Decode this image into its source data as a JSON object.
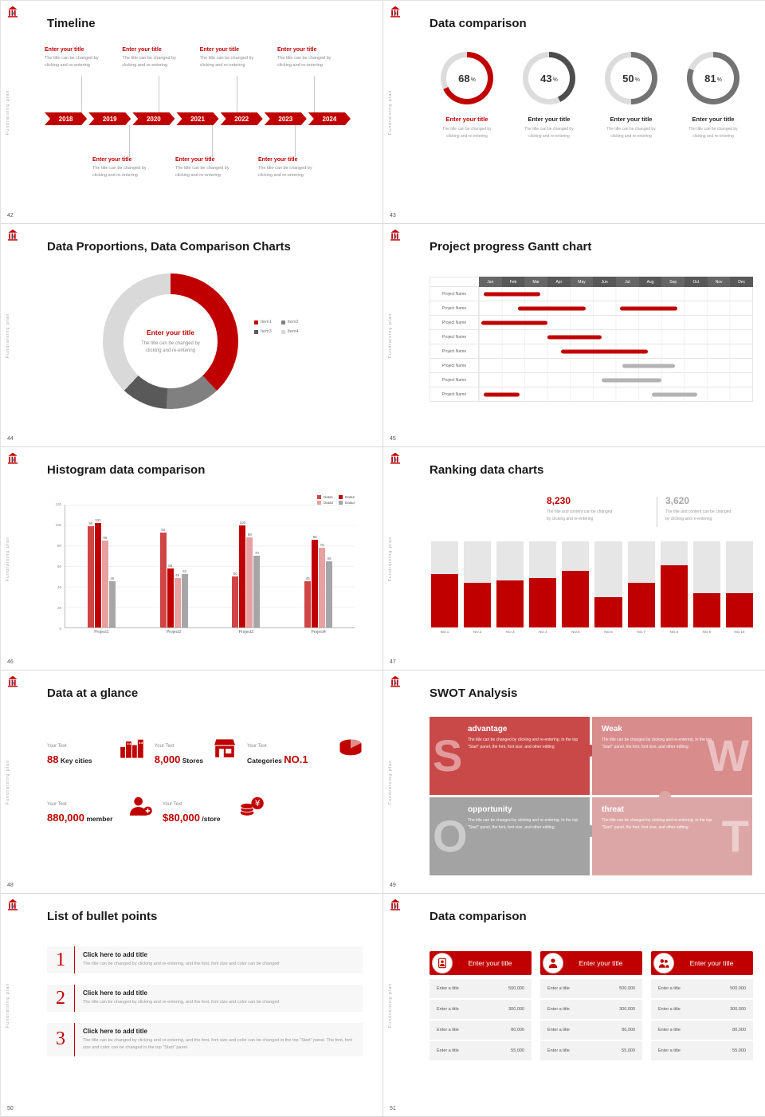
{
  "common": {
    "sidebar_text": "Fundraising plan",
    "accent": "#c00000"
  },
  "s42": {
    "number": "42",
    "title": "Timeline",
    "years": [
      "2018",
      "2019",
      "2020",
      "2021",
      "2022",
      "2023",
      "2024"
    ],
    "entry": {
      "title": "Enter your title",
      "desc1": "The title can be changed by",
      "desc2": "clicking and re-entering"
    }
  },
  "s43": {
    "number": "43",
    "title": "Data comparison",
    "entry": {
      "title": "Enter your title",
      "desc1": "The title can be changed by",
      "desc2": "clicking and re-entering"
    },
    "chart_data": {
      "type": "donut-rings",
      "values": [
        68,
        43,
        50,
        81
      ],
      "unit": "%",
      "colors": [
        "#c00000",
        "#4d4d4d",
        "#737373",
        "#737373"
      ],
      "title_colors": [
        "#c00000",
        "#262626",
        "#262626",
        "#262626"
      ]
    }
  },
  "s44": {
    "number": "44",
    "title": "Data Proportions, Data Comparison Charts",
    "center": {
      "title": "Enter your title",
      "desc1": "The title can be changed by",
      "desc2": "clicking and re-entering"
    },
    "chart_data": {
      "type": "pie",
      "legend": [
        "Item1",
        "Item2",
        "Item3",
        "Item4"
      ],
      "values": [
        38,
        13,
        11,
        38
      ],
      "colors": [
        "#c00000",
        "#808080",
        "#595959",
        "#d9d9d9"
      ]
    }
  },
  "s45": {
    "number": "45",
    "title": "Project progress Gantt chart",
    "chart_data": {
      "type": "gantt",
      "months": [
        "Jan",
        "Feb",
        "Mar",
        "Apr",
        "May",
        "Jun",
        "Jul",
        "Aug",
        "Sep",
        "Oct",
        "Nov",
        "Dec"
      ],
      "rows": [
        {
          "label": "Project Name",
          "bars": [
            {
              "start": 0.2,
              "end": 2.7,
              "color": "#c00000"
            }
          ]
        },
        {
          "label": "Project Name",
          "bars": [
            {
              "start": 1.7,
              "end": 4.7,
              "color": "#c00000"
            },
            {
              "start": 6.2,
              "end": 8.7,
              "color": "#c00000"
            }
          ]
        },
        {
          "label": "Project Name",
          "bars": [
            {
              "start": 0.1,
              "end": 3.0,
              "color": "#c00000"
            }
          ]
        },
        {
          "label": "Project Name",
          "bars": [
            {
              "start": 3.0,
              "end": 5.4,
              "color": "#c00000"
            }
          ]
        },
        {
          "label": "Project Name",
          "bars": [
            {
              "start": 3.6,
              "end": 7.4,
              "color": "#c00000"
            }
          ]
        },
        {
          "label": "Project Name",
          "bars": [
            {
              "start": 6.3,
              "end": 8.6,
              "color": "#b3b3b3"
            }
          ]
        },
        {
          "label": "Project Name",
          "bars": [
            {
              "start": 5.4,
              "end": 8.0,
              "color": "#b3b3b3"
            }
          ]
        },
        {
          "label": "Project Name",
          "bars": [
            {
              "start": 0.2,
              "end": 1.8,
              "color": "#c00000"
            },
            {
              "start": 7.6,
              "end": 9.6,
              "color": "#b3b3b3"
            }
          ]
        }
      ]
    }
  },
  "s46": {
    "number": "46",
    "title": "Histogram data comparison",
    "chart_data": {
      "type": "bar",
      "categories": [
        "Project1",
        "Project2",
        "Project3",
        "Project4"
      ],
      "series": [
        {
          "name": "Data1",
          "color": "#d04545",
          "values": [
            99,
            93,
            50,
            45
          ]
        },
        {
          "name": "Data2",
          "color": "#c00000",
          "values": [
            102,
            58,
            100,
            86
          ]
        },
        {
          "name": "Data3",
          "color": "#e8a0a0",
          "values": [
            85,
            48,
            88,
            78
          ]
        },
        {
          "name": "Data4",
          "color": "#a6a6a6",
          "values": [
            45,
            52,
            70,
            65
          ]
        }
      ],
      "ymax": 120,
      "yticks": [
        0,
        20,
        40,
        60,
        80,
        100,
        120
      ]
    }
  },
  "s47": {
    "number": "47",
    "title": "Ranking data charts",
    "stats": [
      {
        "value": "8,230",
        "desc1": "The title and content can be changed",
        "desc2": "by clicking and re-entering",
        "color": "#c00000"
      },
      {
        "value": "3,620",
        "desc1": "The title and content can be changed",
        "desc2": "by clicking and re-entering",
        "color": "#a6a6a6"
      }
    ],
    "chart_data": {
      "type": "bar",
      "categories": [
        "NO.1",
        "NO.2",
        "NO.3",
        "NO.4",
        "NO.5",
        "NO.6",
        "NO.7",
        "NO.8",
        "NO.9",
        "NO.10"
      ],
      "values": [
        62,
        52,
        55,
        57,
        66,
        35,
        52,
        72,
        40,
        40
      ],
      "ymax": 100
    }
  },
  "s48": {
    "number": "48",
    "title": "Data at a glance",
    "items": [
      {
        "label": "Your Text",
        "pre": "",
        "big": "88",
        "post": " Key cities"
      },
      {
        "label": "Your Text",
        "pre": "",
        "big": "8,000",
        "post": " Stores"
      },
      {
        "label": "Your Text",
        "pre": "Categories ",
        "big": "NO.1",
        "post": ""
      },
      {
        "label": "Your Text",
        "pre": "",
        "big": "880,000",
        "post": " member"
      },
      {
        "label": "Your Text",
        "pre": "",
        "big": "$80,000",
        "post": " /store"
      }
    ]
  },
  "s49": {
    "number": "49",
    "title": "SWOT Analysis",
    "quadrants": [
      {
        "letter": "S",
        "label": "advantage",
        "desc": "The title can be changed by clicking and re-entering. In the top \"Start\" panel, the font, font size, and other editing",
        "color": "#c94949"
      },
      {
        "letter": "W",
        "label": "Weak",
        "desc": "The title can be changed by clicking and re-entering. In the top \"Start\" panel, the font, font size, and other editing",
        "color": "#d98c8c"
      },
      {
        "letter": "O",
        "label": "opportunity",
        "desc": "The title can be changed by clicking and re-entering. In the top \"Start\" panel, the font, font size, and other editing",
        "color": "#a3a3a3"
      },
      {
        "letter": "T",
        "label": "threat",
        "desc": "The title can be changed by clicking and re-entering. In the top \"Start\" panel, the font, font size, and other editing",
        "color": "#dda6a6"
      }
    ]
  },
  "s50": {
    "number": "50",
    "title": "List of bullet points",
    "items": [
      {
        "num": "1",
        "title": "Click here to add title",
        "desc": "The title can be changed by clicking and re-entering, and the font, font size and color can be changed"
      },
      {
        "num": "2",
        "title": "Click here to add title",
        "desc": "The title can be changed by clicking and re-entering, and the font, font size and color can be changed"
      },
      {
        "num": "3",
        "title": "Click here to add title",
        "desc": "The title can be changed by clicking and re-entering, and the font, font size and color can be changed in the top \"Start\" panel. The font, font size and color can be changed in the top \"Start\" panel."
      }
    ]
  },
  "s51": {
    "number": "51",
    "title": "Data comparison",
    "cards": [
      {
        "header": "Enter your title",
        "rows": [
          [
            "Enter a title",
            "500,000"
          ],
          [
            "Enter a title",
            "300,000"
          ],
          [
            "Enter a title",
            "80,000"
          ],
          [
            "Enter a title",
            "55,000"
          ]
        ]
      },
      {
        "header": "Enter your title",
        "rows": [
          [
            "Enter a title",
            "500,000"
          ],
          [
            "Enter a title",
            "300,000"
          ],
          [
            "Enter a title",
            "80,000"
          ],
          [
            "Enter a title",
            "55,000"
          ]
        ]
      },
      {
        "header": "Enter your title",
        "rows": [
          [
            "Enter a title",
            "500,000"
          ],
          [
            "Enter a title",
            "300,000"
          ],
          [
            "Enter a title",
            "80,000"
          ],
          [
            "Enter a title",
            "55,000"
          ]
        ]
      }
    ]
  }
}
